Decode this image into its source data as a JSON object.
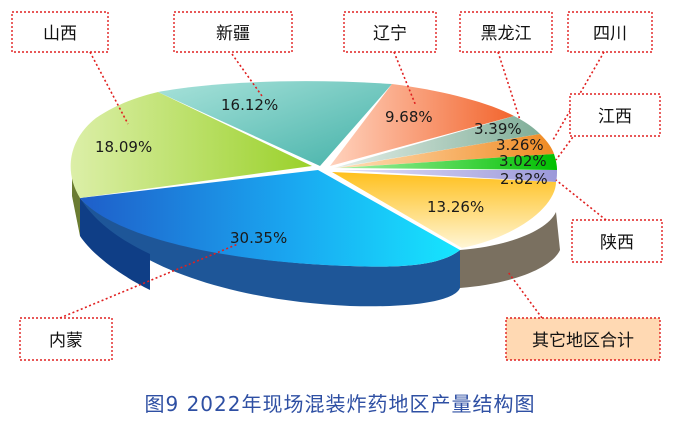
{
  "caption": "图9 2022年现场混装炸药地区产量结构图",
  "chart_data": {
    "type": "pie",
    "style": "3d-exploded",
    "slices": [
      {
        "label": "陕西",
        "value": 2.82,
        "text": "2.82%",
        "color": "#b9b6e6"
      },
      {
        "label": "江西",
        "value": 3.02,
        "text": "3.02%",
        "color": "#1fd11f"
      },
      {
        "label": "四川",
        "value": 3.26,
        "text": "3.26%",
        "color": "#f5a14a"
      },
      {
        "label": "黑龙江",
        "value": 3.39,
        "text": "3.39%",
        "color": "#9fc0b0"
      },
      {
        "label": "辽宁",
        "value": 9.68,
        "text": "9.68%",
        "color": "#f58a5a"
      },
      {
        "label": "新疆",
        "value": 16.12,
        "text": "16.12%",
        "color": "#7fd0c6"
      },
      {
        "label": "山西",
        "value": 18.09,
        "text": "18.09%",
        "color": "#b8df4a"
      },
      {
        "label": "内蒙",
        "value": 30.35,
        "text": "30.35%",
        "color": "#1aa6f0"
      },
      {
        "label": "其它地区合计",
        "value": 13.26,
        "text": "13.26%",
        "color": "#ffd24a"
      }
    ]
  }
}
